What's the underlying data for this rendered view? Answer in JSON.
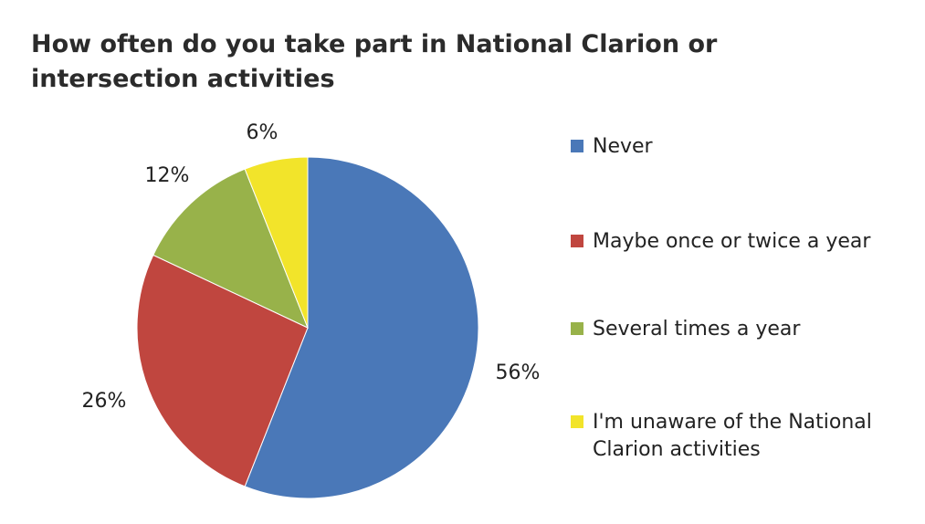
{
  "chart_data": {
    "type": "pie",
    "title": "How often do you take part in National Clarion or intersection activities",
    "legend_position": "right",
    "slices": [
      {
        "label": "Never",
        "value": 56,
        "display": "56%",
        "color": "#4a78b8"
      },
      {
        "label": "Maybe once or twice a year",
        "value": 26,
        "display": "26%",
        "color": "#c0463f"
      },
      {
        "label": "Several times a year",
        "value": 12,
        "display": "12%",
        "color": "#98b24a"
      },
      {
        "label": "I'm unaware of the National Clarion activities",
        "value": 6,
        "display": "6%",
        "color": "#f2e42a"
      }
    ]
  }
}
